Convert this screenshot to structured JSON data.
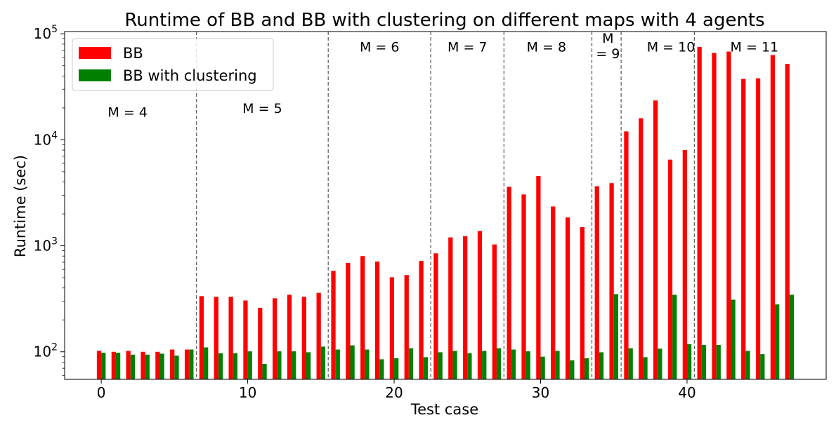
{
  "chart_data": {
    "type": "bar",
    "title": "Runtime of BB and BB with clustering on different maps with 4 agents",
    "xlabel": "Test case",
    "ylabel": "Runtime (sec)",
    "yscale": "log",
    "ylim": [
      55,
      105000
    ],
    "xlim": [
      -2.5,
      49.5
    ],
    "xticks": [
      0,
      10,
      20,
      30,
      40
    ],
    "yticks": [
      {
        "value": 100,
        "base": "10",
        "exp": "2"
      },
      {
        "value": 1000,
        "base": "10",
        "exp": "3"
      },
      {
        "value": 10000,
        "base": "10",
        "exp": "4"
      },
      {
        "value": 100000,
        "base": "10",
        "exp": "5"
      }
    ],
    "legend_position": "top-left",
    "x": [
      0,
      1,
      2,
      3,
      4,
      5,
      6,
      7,
      8,
      9,
      10,
      11,
      12,
      13,
      14,
      15,
      16,
      17,
      18,
      19,
      20,
      21,
      22,
      23,
      24,
      25,
      26,
      27,
      28,
      29,
      30,
      31,
      32,
      33,
      34,
      35,
      36,
      37,
      38,
      39,
      40,
      41,
      42,
      43,
      44,
      45,
      46,
      47
    ],
    "series": [
      {
        "name": "BB",
        "color": "#ff0000",
        "values": [
          102,
          100,
          102,
          100,
          100,
          105,
          105,
          335,
          330,
          330,
          305,
          260,
          320,
          345,
          330,
          360,
          580,
          690,
          800,
          710,
          505,
          530,
          720,
          850,
          1200,
          1230,
          1380,
          1030,
          3600,
          3050,
          4550,
          2350,
          1850,
          1500,
          3650,
          3900,
          12000,
          16000,
          23500,
          6500,
          8000,
          75000,
          66000,
          68000,
          37500,
          38000,
          63000,
          52000
        ]
      },
      {
        "name": "BB with clustering",
        "color": "#008000",
        "values": [
          98,
          98,
          94,
          94,
          96,
          92,
          105,
          110,
          97,
          97,
          101,
          77,
          101,
          101,
          99,
          112,
          105,
          115,
          105,
          85,
          87,
          108,
          89,
          99,
          102,
          97,
          102,
          108,
          105,
          101,
          90,
          102,
          83,
          87,
          99,
          350,
          108,
          89,
          107,
          345,
          118,
          116,
          116,
          310,
          102,
          95,
          280,
          345
        ]
      }
    ],
    "separators": [
      6.5,
      15.5,
      22.5,
      27.5,
      33.5,
      35.5,
      40.5
    ],
    "regions": [
      {
        "label": "M = 4",
        "lines": [
          "M = 4"
        ],
        "x": 1.8,
        "y": 16500
      },
      {
        "label": "M = 5",
        "lines": [
          "M = 5"
        ],
        "x": 11.0,
        "y": 18000
      },
      {
        "label": "M = 6",
        "lines": [
          "M = 6"
        ],
        "x": 19.0,
        "y": 68000
      },
      {
        "label": "M = 7",
        "lines": [
          "M = 7"
        ],
        "x": 25.0,
        "y": 68000
      },
      {
        "label": "M = 8",
        "lines": [
          "M = 8"
        ],
        "x": 30.4,
        "y": 68000
      },
      {
        "label": "M = 9",
        "lines": [
          "M",
          "= 9"
        ],
        "x": 34.6,
        "y": 82000
      },
      {
        "label": "M = 10",
        "lines": [
          "M = 10"
        ],
        "x": 38.9,
        "y": 68000
      },
      {
        "label": "M = 11",
        "lines": [
          "M = 11"
        ],
        "x": 44.6,
        "y": 68000
      }
    ]
  }
}
